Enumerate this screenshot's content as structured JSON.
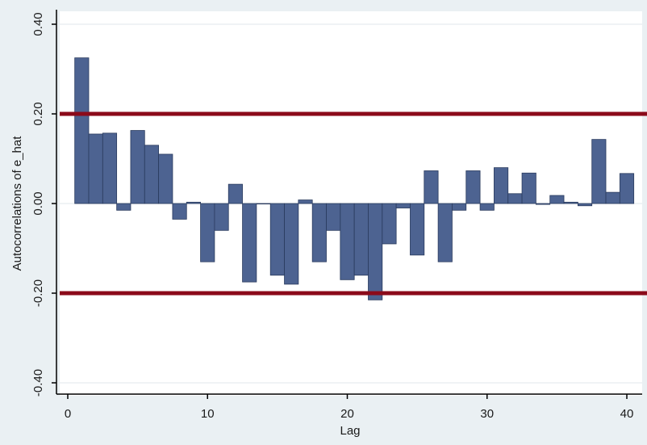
{
  "chart_data": {
    "type": "bar",
    "title": "",
    "xlabel": "Lag",
    "ylabel": "Autocorrelations of e_hat",
    "xlim": [
      0,
      40
    ],
    "ylim": [
      -0.4,
      0.4
    ],
    "x_ticks": [
      0,
      10,
      20,
      30,
      40
    ],
    "y_ticks": [
      -0.4,
      -0.2,
      0.0,
      0.2,
      0.4
    ],
    "y_tick_labels": [
      "-0.40",
      "-0.20",
      "0.00",
      "0.20",
      "0.40"
    ],
    "grid": "horizontal",
    "bar_color": "#4d6391",
    "bar_edge_color": "#2a3b5e",
    "reference_line_color": "#8b0a1a",
    "reference_lines": [
      0.2,
      -0.2
    ],
    "lags": [
      1,
      2,
      3,
      4,
      5,
      6,
      7,
      8,
      9,
      10,
      11,
      12,
      13,
      14,
      15,
      16,
      17,
      18,
      19,
      20,
      21,
      22,
      23,
      24,
      25,
      26,
      27,
      28,
      29,
      30,
      31,
      32,
      33,
      34,
      35,
      36,
      37,
      38,
      39,
      40
    ],
    "values": [
      0.325,
      0.155,
      0.157,
      -0.015,
      0.163,
      0.13,
      0.11,
      -0.035,
      0.003,
      -0.13,
      -0.06,
      0.043,
      -0.175,
      0.0,
      -0.16,
      -0.18,
      0.008,
      -0.13,
      -0.06,
      -0.17,
      -0.16,
      -0.215,
      -0.09,
      -0.01,
      -0.115,
      0.073,
      -0.13,
      -0.015,
      0.073,
      -0.015,
      0.08,
      0.022,
      0.068,
      -0.002,
      0.018,
      0.003,
      -0.005,
      0.143,
      0.025,
      0.067
    ]
  }
}
